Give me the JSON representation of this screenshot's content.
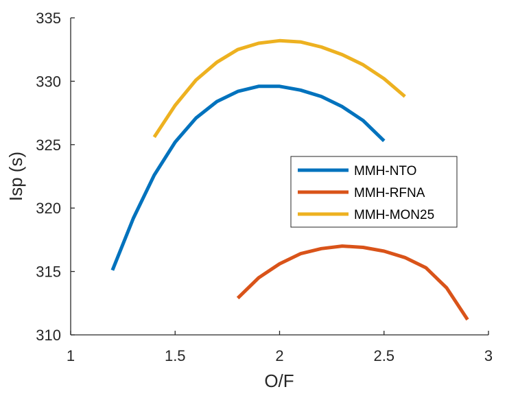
{
  "chart_data": {
    "type": "line",
    "title": "",
    "xlabel": "O/F",
    "ylabel": "Isp (s)",
    "xlim": [
      1,
      3
    ],
    "ylim": [
      310,
      335
    ],
    "xticks": [
      1,
      1.5,
      2,
      2.5,
      3
    ],
    "xtick_labels": [
      "1",
      "1.5",
      "2",
      "2.5",
      "3"
    ],
    "yticks": [
      310,
      315,
      320,
      325,
      330,
      335
    ],
    "ytick_labels": [
      "310",
      "315",
      "320",
      "325",
      "330",
      "335"
    ],
    "grid": false,
    "legend_position": "center-right",
    "series": [
      {
        "name": "MMH-NTO",
        "color": "#0072BD",
        "x": [
          1.2,
          1.3,
          1.4,
          1.5,
          1.6,
          1.7,
          1.8,
          1.9,
          2.0,
          2.1,
          2.2,
          2.3,
          2.4,
          2.5
        ],
        "y": [
          315.1,
          319.2,
          322.6,
          325.2,
          327.1,
          328.4,
          329.2,
          329.6,
          329.6,
          329.3,
          328.8,
          328.0,
          326.9,
          325.3
        ]
      },
      {
        "name": "MMH-RFNA",
        "color": "#D95319",
        "x": [
          1.8,
          1.9,
          2.0,
          2.1,
          2.2,
          2.3,
          2.4,
          2.5,
          2.6,
          2.7,
          2.8,
          2.9
        ],
        "y": [
          312.9,
          314.5,
          315.6,
          316.4,
          316.8,
          317.0,
          316.9,
          316.6,
          316.1,
          315.3,
          313.7,
          311.2
        ]
      },
      {
        "name": "MMH-MON25",
        "color": "#EDB120",
        "x": [
          1.4,
          1.5,
          1.6,
          1.7,
          1.8,
          1.9,
          2.0,
          2.1,
          2.2,
          2.3,
          2.4,
          2.5,
          2.6
        ],
        "y": [
          325.6,
          328.1,
          330.1,
          331.5,
          332.5,
          333.0,
          333.2,
          333.1,
          332.7,
          332.1,
          331.3,
          330.2,
          328.8
        ]
      }
    ]
  }
}
